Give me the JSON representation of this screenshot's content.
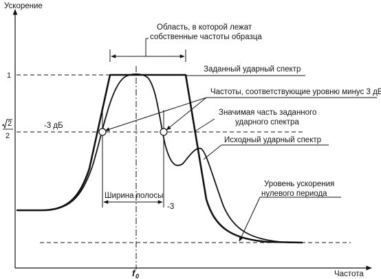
{
  "axes": {
    "y_label": "Ускорение",
    "x_label": "Частота",
    "tick_one": "1",
    "tick_sqrt_num": "2",
    "tick_sqrt_den": "2",
    "f0_main": "f",
    "f0_sub": "0"
  },
  "labels": {
    "region_line1": "Область, в которой лежат",
    "region_line2": "собственные частоты образца",
    "given_spectrum": "Заданный ударный спектр",
    "freq_minus3_db": "Частоты, соответствующие уровню минус 3 дБ",
    "significant_line1": "Значимая часть заданного",
    "significant_line2": "ударного спектра",
    "minus3_db": "-3 дБ",
    "original_spectrum": "Исходный ударный спектр",
    "zero_level_line1": "Уровень ускорения",
    "zero_level_line2": "нулевого периода",
    "bandwidth": "Ширина полосы",
    "minus3": "-3"
  }
}
